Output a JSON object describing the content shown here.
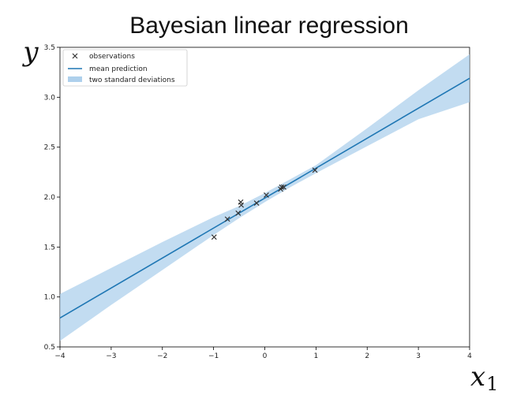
{
  "chart_data": {
    "type": "line",
    "title": "Bayesian linear regression",
    "xlabel_var": "x",
    "xlabel_sub": "1",
    "ylabel": "y",
    "xlim": [
      -4,
      4
    ],
    "ylim": [
      0.5,
      3.5
    ],
    "xticks": [
      -4,
      -3,
      -2,
      -1,
      0,
      1,
      2,
      3,
      4
    ],
    "yticks": [
      0.5,
      1.0,
      1.5,
      2.0,
      2.5,
      3.0,
      3.5
    ],
    "ytick_labels": [
      "0.5",
      "1.0",
      "1.5",
      "2.0",
      "2.5",
      "3.0",
      "3.5"
    ],
    "grid": false,
    "legend_position": "top-left",
    "legend": [
      "observations",
      "mean prediction",
      "two standard deviations"
    ],
    "colors": {
      "line": "#1f77b4",
      "band": "#aed0ec",
      "marker": "#333333"
    },
    "series": [
      {
        "name": "observations",
        "kind": "scatter",
        "marker": "x",
        "x": [
          -0.99,
          -0.73,
          -0.52,
          -0.47,
          -0.46,
          -0.16,
          0.03,
          0.31,
          0.33,
          0.37,
          0.98
        ],
        "y": [
          1.6,
          1.78,
          1.84,
          1.95,
          1.92,
          1.94,
          2.02,
          2.08,
          2.1,
          2.1,
          2.27
        ]
      },
      {
        "name": "mean prediction",
        "kind": "line",
        "x": [
          -4,
          4
        ],
        "y": [
          0.79,
          3.19
        ]
      },
      {
        "name": "two standard deviations",
        "kind": "band",
        "x": [
          -4,
          -3,
          -2,
          -1,
          -0.5,
          0,
          0.5,
          1,
          2,
          3,
          4
        ],
        "lower": [
          0.56,
          0.92,
          1.27,
          1.62,
          1.79,
          1.95,
          2.1,
          2.24,
          2.51,
          2.78,
          2.95
        ],
        "upper": [
          1.03,
          1.29,
          1.55,
          1.8,
          1.91,
          2.04,
          2.18,
          2.32,
          2.69,
          3.07,
          3.43
        ]
      }
    ]
  }
}
